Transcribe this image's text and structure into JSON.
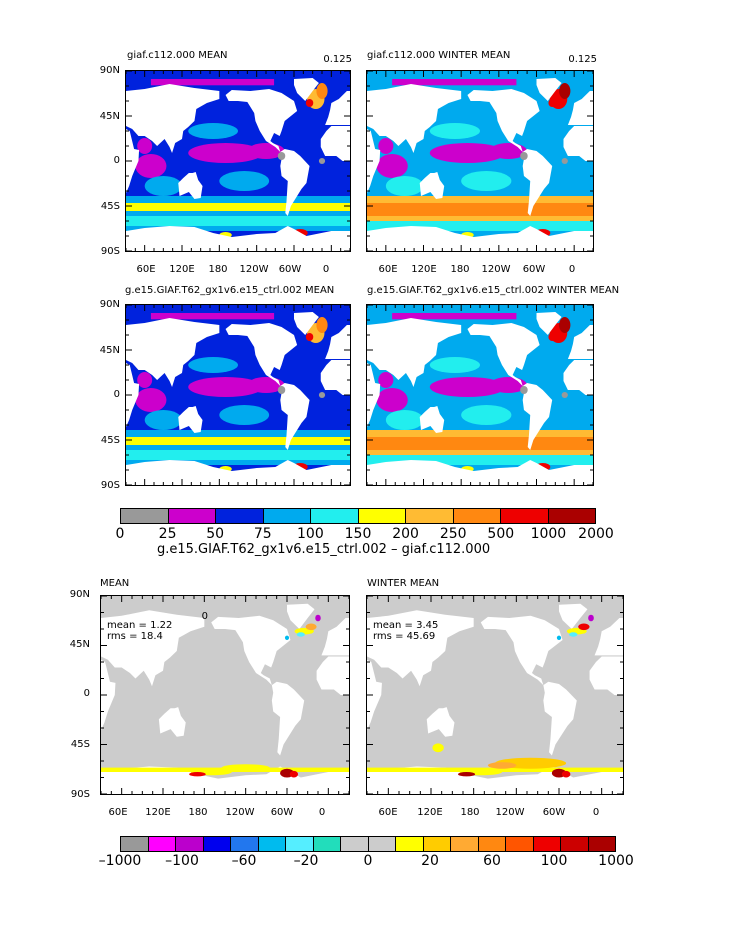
{
  "chart_data": [
    {
      "type": "heatmap",
      "title": "giaf.c112.000 MEAN",
      "note": "0.125",
      "x_ticks": [
        "60E",
        "120E",
        "180",
        "120W",
        "60W",
        "0"
      ],
      "y_ticks": [
        "90N",
        "45N",
        "0",
        "45S",
        "90S"
      ],
      "colorbar": "levels"
    },
    {
      "type": "heatmap",
      "title": "giaf.c112.000 WINTER MEAN",
      "note": "0.125",
      "x_ticks": [
        "60E",
        "120E",
        "180",
        "120W",
        "60W",
        "0"
      ],
      "y_ticks": [
        "90N",
        "45N",
        "0",
        "45S",
        "90S"
      ],
      "colorbar": "levels"
    },
    {
      "type": "heatmap",
      "title": "g.e15.GIAF.T62_gx1v6.e15_ctrl.002 MEAN",
      "y_ticks": [
        "90N",
        "45N",
        "0",
        "45S",
        "90S"
      ],
      "colorbar": "levels"
    },
    {
      "type": "heatmap",
      "title": "g.e15.GIAF.T62_gx1v6.e15_ctrl.002 WINTER MEAN",
      "colorbar": "levels"
    },
    {
      "type": "heatmap",
      "title": "MEAN",
      "note": "0",
      "mean_label": "mean = 1.22",
      "rms_label": "rms = 18.4",
      "x_ticks": [
        "60E",
        "120E",
        "180",
        "120W",
        "60W",
        "0"
      ],
      "y_ticks": [
        "90N",
        "45N",
        "0",
        "45S",
        "90S"
      ],
      "colorbar": "difference"
    },
    {
      "type": "heatmap",
      "title": "WINTER MEAN",
      "mean_label": "mean = 3.45",
      "rms_label": "rms = 45.69",
      "x_ticks": [
        "60E",
        "120E",
        "180",
        "120W",
        "60W",
        "0"
      ],
      "colorbar": "difference"
    }
  ],
  "colorbar_levels": {
    "colors": [
      "#999999",
      "#cc00cc",
      "#0022dd",
      "#00aaee",
      "#22eeee",
      "#ffff00",
      "#ffbb33",
      "#ff8811",
      "#ee0000",
      "#aa0000"
    ],
    "tick_labels": [
      "0",
      "25",
      "50",
      "75",
      "100",
      "150",
      "200",
      "250",
      "500",
      "1000",
      "2000"
    ],
    "title": "g.e15.GIAF.T62_gx1v6.e15_ctrl.002 – giaf.c112.000"
  },
  "colorbar_difference": {
    "colors": [
      "#999999",
      "#ff00ff",
      "#bb00cc",
      "#0000ee",
      "#2277ee",
      "#00bbee",
      "#55eeff",
      "#22ddbb",
      "#cccccc",
      "#cccccc",
      "#ffff00",
      "#ffcc00",
      "#ffaa33",
      "#ff8811",
      "#ff5500",
      "#ee0000",
      "#cc0000",
      "#aa0000"
    ],
    "tick_labels": [
      "–1000",
      "–100",
      "–60",
      "–20",
      "0",
      "20",
      "60",
      "100",
      "1000"
    ]
  },
  "colors": {
    "ocean_base": "#0022dd",
    "land": "#ffffff",
    "diff_background": "#cccccc"
  }
}
